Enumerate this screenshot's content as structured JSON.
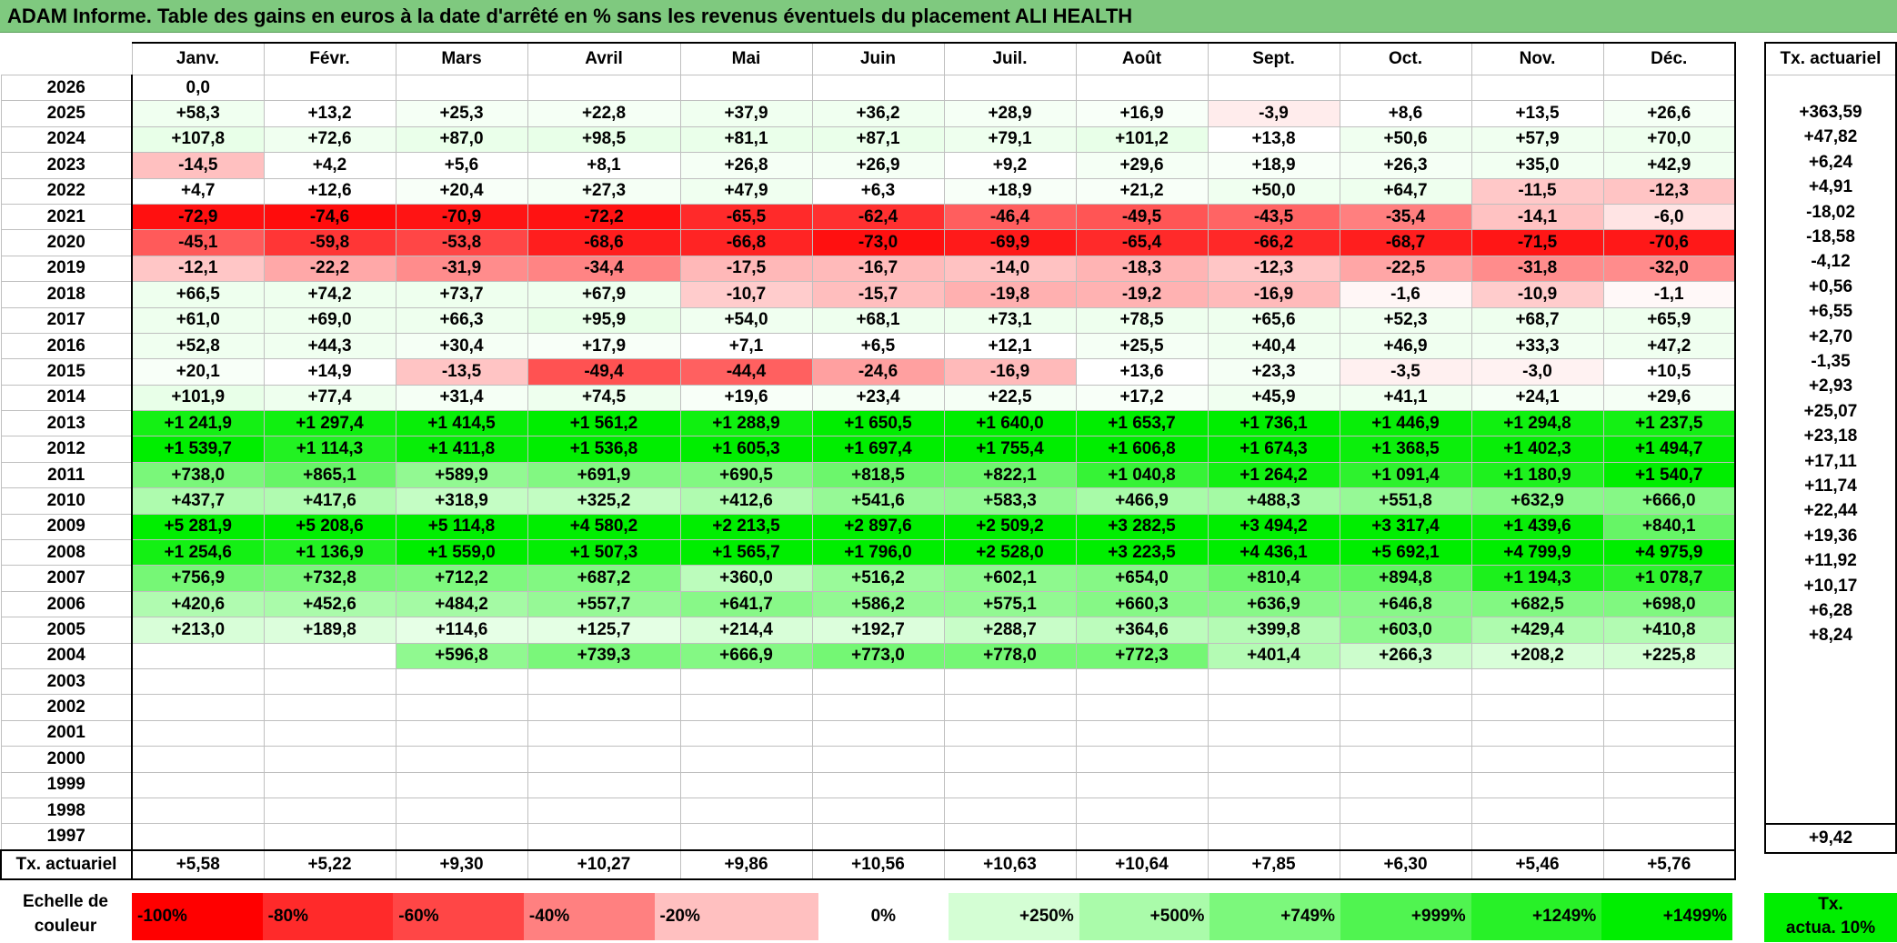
{
  "title": "ADAM Informe. Table des gains en euros à la date d'arrêté en % sans les revenus éventuels du placement ALI HEALTH",
  "months": [
    "Janv.",
    "Févr.",
    "Mars",
    "Avril",
    "Mai",
    "Juin",
    "Juil.",
    "Août",
    "Sept.",
    "Oct.",
    "Nov.",
    "Déc."
  ],
  "side_header": "Tx. actuariel",
  "rows": [
    {
      "year": "2026",
      "cells": [
        "0,0",
        "",
        "",
        "",
        "",
        "",
        "",
        "",
        "",
        "",
        "",
        ""
      ],
      "colors": [
        "#ffffff",
        "#ffffff",
        "#ffffff",
        "#ffffff",
        "#ffffff",
        "#ffffff",
        "#ffffff",
        "#ffffff",
        "#ffffff",
        "#ffffff",
        "#ffffff",
        "#ffffff"
      ],
      "tx": ""
    },
    {
      "year": "2025",
      "cells": [
        "+58,3",
        "+13,2",
        "+25,3",
        "+22,8",
        "+37,9",
        "+36,2",
        "+28,9",
        "+16,9",
        "-3,9",
        "+8,6",
        "+13,5",
        "+26,6"
      ],
      "colors": [
        "#f0fff0",
        "#ffffff",
        "#f5fff5",
        "#f5fff5",
        "#f0fff0",
        "#f0fff0",
        "#f5fff5",
        "#f8fff8",
        "#ffecec",
        "#ffffff",
        "#ffffff",
        "#f5fff5"
      ],
      "tx": "+363,59"
    },
    {
      "year": "2024",
      "cells": [
        "+107,8",
        "+72,6",
        "+87,0",
        "+98,5",
        "+81,1",
        "+87,1",
        "+79,1",
        "+101,2",
        "+13,8",
        "+50,6",
        "+57,9",
        "+70,0"
      ],
      "colors": [
        "#e8ffe8",
        "#f0fff0",
        "#eaffea",
        "#e8ffe8",
        "#eaffea",
        "#eaffea",
        "#eeffee",
        "#e8ffe8",
        "#ffffff",
        "#f0fff0",
        "#f0fff0",
        "#eeffee"
      ],
      "tx": "+47,82"
    },
    {
      "year": "2023",
      "cells": [
        "-14,5",
        "+4,2",
        "+5,6",
        "+8,1",
        "+26,8",
        "+26,9",
        "+9,2",
        "+29,6",
        "+18,9",
        "+26,3",
        "+35,0",
        "+42,9"
      ],
      "colors": [
        "#ffc0c0",
        "#ffffff",
        "#ffffff",
        "#ffffff",
        "#f5fff5",
        "#f5fff5",
        "#ffffff",
        "#f5fff5",
        "#f8fff8",
        "#f5fff5",
        "#f2fff2",
        "#f0fff0"
      ],
      "tx": "+6,24"
    },
    {
      "year": "2022",
      "cells": [
        "+4,7",
        "+12,6",
        "+20,4",
        "+27,3",
        "+47,9",
        "+6,3",
        "+18,9",
        "+21,2",
        "+50,0",
        "+64,7",
        "-11,5",
        "-12,3"
      ],
      "colors": [
        "#ffffff",
        "#ffffff",
        "#f8fff8",
        "#f5fff5",
        "#f0fff0",
        "#ffffff",
        "#f8fff8",
        "#f8fff8",
        "#f0fff0",
        "#eeffee",
        "#ffc8c8",
        "#ffc4c4"
      ],
      "tx": "+4,91"
    },
    {
      "year": "2021",
      "cells": [
        "-72,9",
        "-74,6",
        "-70,9",
        "-72,2",
        "-65,5",
        "-62,4",
        "-46,4",
        "-49,5",
        "-43,5",
        "-35,4",
        "-14,1",
        "-6,0"
      ],
      "colors": [
        "#ff1010",
        "#ff0c0c",
        "#ff1414",
        "#ff1212",
        "#ff2a2a",
        "#ff3030",
        "#ff5e5e",
        "#ff5555",
        "#ff6464",
        "#ff7f7f",
        "#ffc2c2",
        "#ffe4e4"
      ],
      "tx": "-18,02"
    },
    {
      "year": "2020",
      "cells": [
        "-45,1",
        "-59,8",
        "-53,8",
        "-68,6",
        "-66,8",
        "-73,0",
        "-69,9",
        "-65,4",
        "-66,2",
        "-68,7",
        "-71,5",
        "-70,6"
      ],
      "colors": [
        "#ff5a5a",
        "#ff3636",
        "#ff4646",
        "#ff1e1e",
        "#ff2424",
        "#ff1010",
        "#ff1a1a",
        "#ff2a2a",
        "#ff2828",
        "#ff1e1e",
        "#ff1616",
        "#ff1818"
      ],
      "tx": "-18,58"
    },
    {
      "year": "2019",
      "cells": [
        "-12,1",
        "-22,2",
        "-31,9",
        "-34,4",
        "-17,5",
        "-16,7",
        "-14,0",
        "-18,3",
        "-12,3",
        "-22,5",
        "-31,8",
        "-32,0"
      ],
      "colors": [
        "#ffc6c6",
        "#ffa8a8",
        "#ff8c8c",
        "#ff8484",
        "#ffb8b8",
        "#ffbaba",
        "#ffc2c2",
        "#ffb4b4",
        "#ffc6c6",
        "#ffa6a6",
        "#ff8c8c",
        "#ff8c8c"
      ],
      "tx": "-4,12"
    },
    {
      "year": "2018",
      "cells": [
        "+66,5",
        "+74,2",
        "+73,7",
        "+67,9",
        "-10,7",
        "-15,7",
        "-19,8",
        "-19,2",
        "-16,9",
        "-1,6",
        "-10,9",
        "-1,1"
      ],
      "colors": [
        "#eeffee",
        "#eeffee",
        "#eeffee",
        "#eeffee",
        "#ffcccc",
        "#ffbebe",
        "#ffb0b0",
        "#ffb2b2",
        "#ffbaba",
        "#fff6f6",
        "#ffcccc",
        "#fff8f8"
      ],
      "tx": "+0,56"
    },
    {
      "year": "2017",
      "cells": [
        "+61,0",
        "+69,0",
        "+66,3",
        "+95,9",
        "+54,0",
        "+68,1",
        "+73,1",
        "+78,5",
        "+65,6",
        "+52,3",
        "+68,7",
        "+65,9"
      ],
      "colors": [
        "#eeffee",
        "#eeffee",
        "#eeffee",
        "#e8ffe8",
        "#f0fff0",
        "#eeffee",
        "#eeffee",
        "#eeffee",
        "#eeffee",
        "#f0fff0",
        "#eeffee",
        "#eeffee"
      ],
      "tx": "+6,55"
    },
    {
      "year": "2016",
      "cells": [
        "+52,8",
        "+44,3",
        "+30,4",
        "+17,9",
        "+7,1",
        "+6,5",
        "+12,1",
        "+25,5",
        "+40,4",
        "+46,9",
        "+33,3",
        "+47,2"
      ],
      "colors": [
        "#f0fff0",
        "#f0fff0",
        "#f5fff5",
        "#f8fff8",
        "#ffffff",
        "#ffffff",
        "#ffffff",
        "#f5fff5",
        "#f0fff0",
        "#f0fff0",
        "#f2fff2",
        "#f0fff0"
      ],
      "tx": "+2,70"
    },
    {
      "year": "2015",
      "cells": [
        "+20,1",
        "+14,9",
        "-13,5",
        "-49,4",
        "-44,4",
        "-24,6",
        "-16,9",
        "+13,6",
        "+23,3",
        "-3,5",
        "-3,0",
        "+10,5"
      ],
      "colors": [
        "#f8fff8",
        "#ffffff",
        "#ffc4c4",
        "#ff5252",
        "#ff6060",
        "#ffa0a0",
        "#ffbaba",
        "#ffffff",
        "#f5fff5",
        "#fff0f0",
        "#fff2f2",
        "#ffffff"
      ],
      "tx": "-1,35"
    },
    {
      "year": "2014",
      "cells": [
        "+101,9",
        "+77,4",
        "+31,4",
        "+74,5",
        "+19,6",
        "+23,4",
        "+22,5",
        "+17,2",
        "+45,9",
        "+41,1",
        "+24,1",
        "+29,6"
      ],
      "colors": [
        "#e8ffe8",
        "#eeffee",
        "#f5fff5",
        "#eeffee",
        "#f8fff8",
        "#f5fff5",
        "#f5fff5",
        "#f8fff8",
        "#f0fff0",
        "#f0fff0",
        "#f5fff5",
        "#f5fff5"
      ],
      "tx": "+2,93"
    },
    {
      "year": "2013",
      "cells": [
        "+1 241,9",
        "+1 297,4",
        "+1 414,5",
        "+1 561,2",
        "+1 288,9",
        "+1 650,5",
        "+1 640,0",
        "+1 653,7",
        "+1 736,1",
        "+1 446,9",
        "+1 294,8",
        "+1 237,5"
      ],
      "colors": [
        "#14f014",
        "#10f010",
        "#08ee08",
        "#00ee00",
        "#10f010",
        "#00ee00",
        "#00ee00",
        "#00ee00",
        "#00ee00",
        "#08ee08",
        "#10f010",
        "#14f014"
      ],
      "tx": "+25,07"
    },
    {
      "year": "2012",
      "cells": [
        "+1 539,7",
        "+1 114,3",
        "+1 411,8",
        "+1 536,8",
        "+1 605,3",
        "+1 697,4",
        "+1 755,4",
        "+1 606,8",
        "+1 674,3",
        "+1 368,5",
        "+1 402,3",
        "+1 494,7"
      ],
      "colors": [
        "#00ee00",
        "#22f222",
        "#08ee08",
        "#00ee00",
        "#00ee00",
        "#00ee00",
        "#00ee00",
        "#00ee00",
        "#00ee00",
        "#0cef0c",
        "#08ee08",
        "#04ee04"
      ],
      "tx": "+23,18"
    },
    {
      "year": "2011",
      "cells": [
        "+738,0",
        "+865,1",
        "+589,9",
        "+691,9",
        "+690,5",
        "+818,5",
        "+822,1",
        "+1 040,8",
        "+1 264,2",
        "+1 091,4",
        "+1 180,9",
        "+1 540,7"
      ],
      "colors": [
        "#7af77a",
        "#66f566",
        "#92f992",
        "#82f882",
        "#82f882",
        "#6cf66c",
        "#6cf66c",
        "#36f336",
        "#12f012",
        "#2ef22e",
        "#1ef11e",
        "#00ee00"
      ],
      "tx": "+17,11"
    },
    {
      "year": "2010",
      "cells": [
        "+437,7",
        "+417,6",
        "+318,9",
        "+325,2",
        "+412,6",
        "+541,6",
        "+583,3",
        "+466,9",
        "+488,3",
        "+551,8",
        "+632,9",
        "+666,0"
      ],
      "colors": [
        "#aefbae",
        "#b0fbb0",
        "#c4fdc4",
        "#c2fdc2",
        "#b0fbb0",
        "#96f996",
        "#92f992",
        "#a8fba8",
        "#a4faa4",
        "#96f996",
        "#8af88a",
        "#86f886"
      ],
      "tx": "+11,74"
    },
    {
      "year": "2009",
      "cells": [
        "+5 281,9",
        "+5 208,6",
        "+5 114,8",
        "+4 580,2",
        "+2 213,5",
        "+2 897,6",
        "+2 509,2",
        "+3 282,5",
        "+3 494,2",
        "+3 317,4",
        "+1 439,6",
        "+840,1"
      ],
      "colors": [
        "#00ee00",
        "#00ee00",
        "#00ee00",
        "#00ee00",
        "#00ee00",
        "#00ee00",
        "#00ee00",
        "#00ee00",
        "#00ee00",
        "#00ee00",
        "#08ee08",
        "#66f566"
      ],
      "tx": "+22,44"
    },
    {
      "year": "2008",
      "cells": [
        "+1 254,6",
        "+1 136,9",
        "+1 559,0",
        "+1 507,3",
        "+1 565,7",
        "+1 796,0",
        "+2 528,0",
        "+3 223,5",
        "+4 436,1",
        "+5 692,1",
        "+4 799,9",
        "+4 975,9"
      ],
      "colors": [
        "#14f014",
        "#22f222",
        "#00ee00",
        "#04ee04",
        "#00ee00",
        "#00ee00",
        "#00ee00",
        "#00ee00",
        "#00ee00",
        "#00ee00",
        "#00ee00",
        "#00ee00"
      ],
      "tx": "+19,36"
    },
    {
      "year": "2007",
      "cells": [
        "+756,9",
        "+732,8",
        "+712,2",
        "+687,2",
        "+360,0",
        "+516,2",
        "+602,1",
        "+654,0",
        "+810,4",
        "+894,8",
        "+1 194,3",
        "+1 078,7"
      ],
      "colors": [
        "#76f776",
        "#7af77a",
        "#7ef87e",
        "#82f882",
        "#bcfcbc",
        "#9afa9a",
        "#8ef98e",
        "#86f886",
        "#6cf66c",
        "#60f560",
        "#1cf11c",
        "#2ef22e"
      ],
      "tx": "+11,92"
    },
    {
      "year": "2006",
      "cells": [
        "+420,6",
        "+452,6",
        "+484,2",
        "+557,7",
        "+641,7",
        "+586,2",
        "+575,1",
        "+660,3",
        "+636,9",
        "+646,8",
        "+682,5",
        "+698,0"
      ],
      "colors": [
        "#b0fbb0",
        "#aafbaa",
        "#a4faa4",
        "#96f996",
        "#88f888",
        "#92f992",
        "#92f992",
        "#86f886",
        "#88f888",
        "#88f888",
        "#82f882",
        "#80f880"
      ],
      "tx": "+10,17"
    },
    {
      "year": "2005",
      "cells": [
        "+213,0",
        "+189,8",
        "+114,6",
        "+125,7",
        "+214,4",
        "+192,7",
        "+288,7",
        "+364,6",
        "+399,8",
        "+603,0",
        "+429,4",
        "+410,8"
      ],
      "colors": [
        "#d8fed8",
        "#dcfedc",
        "#e6ffe6",
        "#e4ffe4",
        "#d8fed8",
        "#dcfedc",
        "#c8fdc8",
        "#bcfcbc",
        "#b4fbb4",
        "#8ef98e",
        "#aefbae",
        "#b2fbb2"
      ],
      "tx": "+6,28"
    },
    {
      "year": "2004",
      "cells": [
        "",
        "",
        "+596,8",
        "+739,3",
        "+666,9",
        "+773,0",
        "+778,0",
        "+772,3",
        "+401,4",
        "+266,3",
        "+208,2",
        "+225,8"
      ],
      "colors": [
        "#ffffff",
        "#ffffff",
        "#90f990",
        "#7af77a",
        "#84f884",
        "#74f774",
        "#74f774",
        "#74f774",
        "#b4fbb4",
        "#ccfdcc",
        "#d8fed8",
        "#d4fed4"
      ],
      "tx": "+8,24"
    },
    {
      "year": "2003",
      "cells": [
        "",
        "",
        "",
        "",
        "",
        "",
        "",
        "",
        "",
        "",
        "",
        ""
      ],
      "colors": [
        "#ffffff",
        "#ffffff",
        "#ffffff",
        "#ffffff",
        "#ffffff",
        "#ffffff",
        "#ffffff",
        "#ffffff",
        "#ffffff",
        "#ffffff",
        "#ffffff",
        "#ffffff"
      ],
      "tx": ""
    },
    {
      "year": "2002",
      "cells": [
        "",
        "",
        "",
        "",
        "",
        "",
        "",
        "",
        "",
        "",
        "",
        ""
      ],
      "colors": [
        "#ffffff",
        "#ffffff",
        "#ffffff",
        "#ffffff",
        "#ffffff",
        "#ffffff",
        "#ffffff",
        "#ffffff",
        "#ffffff",
        "#ffffff",
        "#ffffff",
        "#ffffff"
      ],
      "tx": ""
    },
    {
      "year": "2001",
      "cells": [
        "",
        "",
        "",
        "",
        "",
        "",
        "",
        "",
        "",
        "",
        "",
        ""
      ],
      "colors": [
        "#ffffff",
        "#ffffff",
        "#ffffff",
        "#ffffff",
        "#ffffff",
        "#ffffff",
        "#ffffff",
        "#ffffff",
        "#ffffff",
        "#ffffff",
        "#ffffff",
        "#ffffff"
      ],
      "tx": ""
    },
    {
      "year": "2000",
      "cells": [
        "",
        "",
        "",
        "",
        "",
        "",
        "",
        "",
        "",
        "",
        "",
        ""
      ],
      "colors": [
        "#ffffff",
        "#ffffff",
        "#ffffff",
        "#ffffff",
        "#ffffff",
        "#ffffff",
        "#ffffff",
        "#ffffff",
        "#ffffff",
        "#ffffff",
        "#ffffff",
        "#ffffff"
      ],
      "tx": ""
    },
    {
      "year": "1999",
      "cells": [
        "",
        "",
        "",
        "",
        "",
        "",
        "",
        "",
        "",
        "",
        "",
        ""
      ],
      "colors": [
        "#ffffff",
        "#ffffff",
        "#ffffff",
        "#ffffff",
        "#ffffff",
        "#ffffff",
        "#ffffff",
        "#ffffff",
        "#ffffff",
        "#ffffff",
        "#ffffff",
        "#ffffff"
      ],
      "tx": ""
    },
    {
      "year": "1998",
      "cells": [
        "",
        "",
        "",
        "",
        "",
        "",
        "",
        "",
        "",
        "",
        "",
        ""
      ],
      "colors": [
        "#ffffff",
        "#ffffff",
        "#ffffff",
        "#ffffff",
        "#ffffff",
        "#ffffff",
        "#ffffff",
        "#ffffff",
        "#ffffff",
        "#ffffff",
        "#ffffff",
        "#ffffff"
      ],
      "tx": ""
    },
    {
      "year": "1997",
      "cells": [
        "",
        "",
        "",
        "",
        "",
        "",
        "",
        "",
        "",
        "",
        "",
        ""
      ],
      "colors": [
        "#ffffff",
        "#ffffff",
        "#ffffff",
        "#ffffff",
        "#ffffff",
        "#ffffff",
        "#ffffff",
        "#ffffff",
        "#ffffff",
        "#ffffff",
        "#ffffff",
        "#ffffff"
      ],
      "tx": ""
    }
  ],
  "tx_row": {
    "label": "Tx. actuariel",
    "values": [
      "+5,58",
      "+5,22",
      "+9,30",
      "+10,27",
      "+9,86",
      "+10,56",
      "+10,63",
      "+10,64",
      "+7,85",
      "+6,30",
      "+5,46",
      "+5,76"
    ],
    "overall": "+9,42"
  },
  "scale": {
    "label_line1": "Echelle de",
    "label_line2": "couleur",
    "steps": [
      {
        "text": "-100%",
        "color": "#ff0000",
        "align": "left"
      },
      {
        "text": "-80%",
        "color": "#ff2a2a",
        "align": "left"
      },
      {
        "text": "-60%",
        "color": "#ff4646",
        "align": "left"
      },
      {
        "text": "-40%",
        "color": "#ff8080",
        "align": "left"
      },
      {
        "text": "-20%",
        "color": "#ffc0c0",
        "align": "left"
      },
      {
        "text": "0%",
        "color": "#ffffff",
        "align": "center"
      },
      {
        "text": "+250%",
        "color": "#d4fed4",
        "align": "right"
      },
      {
        "text": "+500%",
        "color": "#aafbaa",
        "align": "right"
      },
      {
        "text": "+749%",
        "color": "#7cf87c",
        "align": "right"
      },
      {
        "text": "+999%",
        "color": "#50f450",
        "align": "right"
      },
      {
        "text": "+1249%",
        "color": "#28f128",
        "align": "right"
      },
      {
        "text": "+1499%",
        "color": "#00ee00",
        "align": "right"
      }
    ],
    "tx_line1": "Tx.",
    "tx_line2": "actua. 10%"
  }
}
